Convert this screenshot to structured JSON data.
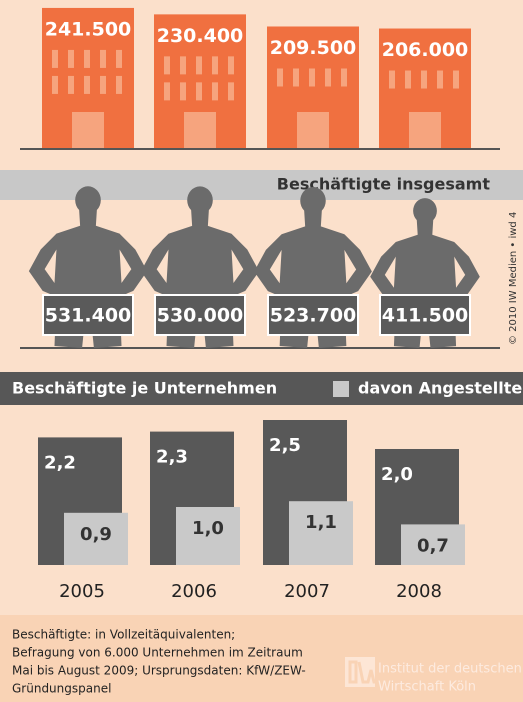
{
  "chart_data": [
    {
      "type": "building",
      "values": [
        241500,
        230400,
        209500,
        206000
      ],
      "value_labels": [
        "241.500",
        "230.400",
        "209.500",
        "206.000"
      ],
      "color": "#f07040"
    },
    {
      "type": "person",
      "title": "Beschäftigte insgesamt",
      "values": [
        531400,
        530000,
        523700,
        411500
      ],
      "value_labels": [
        "531.400",
        "530.000",
        "523.700",
        "411.500"
      ],
      "color": "#6b6b6b"
    },
    {
      "type": "bar",
      "title": "Beschäftigte je Unternehmen",
      "categories": [
        "2005",
        "2006",
        "2007",
        "2008"
      ],
      "series": [
        {
          "color": "#585858",
          "values": [
            2.2,
            2.3,
            2.5,
            2.0
          ],
          "value_labels": [
            "2,2",
            "2,3",
            "2,5",
            "2,0"
          ]
        },
        {
          "name": "davon Angestellte",
          "color": "#c9c9c9",
          "values": [
            0.9,
            1.0,
            1.1,
            0.7
          ],
          "value_labels": [
            "0,9",
            "1,0",
            "1,1",
            "0,7"
          ]
        }
      ]
    }
  ],
  "footnote": [
    "Beschäftigte: in Vollzeitäquivalenten;",
    "Befragung von 6.000 Unternehmen im Zeitraum",
    "Mai bis August 2009; Ursprungsdaten: KfW/ZEW-",
    "Gründungspanel"
  ],
  "copyright": "© 2010 IW Medien • iwd 4",
  "logo": {
    "lines": [
      "Institut der deutschen",
      "Wirtschaft Köln"
    ]
  }
}
